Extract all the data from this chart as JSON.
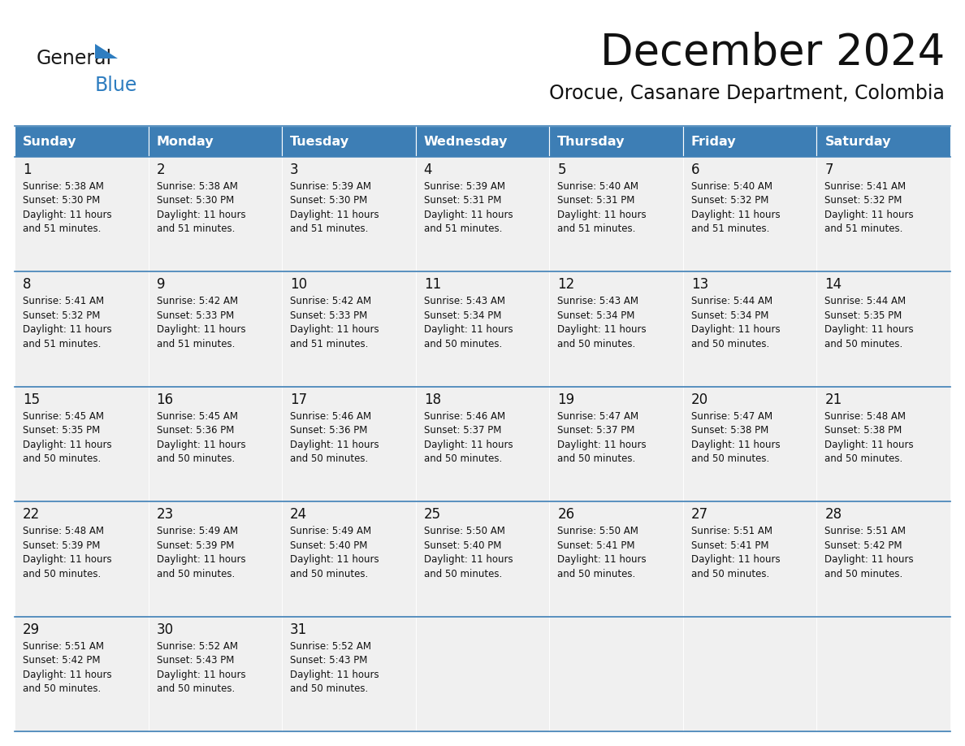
{
  "title": "December 2024",
  "subtitle": "Orocue, Casanare Department, Colombia",
  "header_color": "#3d7eb5",
  "header_text_color": "#ffffff",
  "cell_bg_color": "#f0f0f0",
  "day_headers": [
    "Sunday",
    "Monday",
    "Tuesday",
    "Wednesday",
    "Thursday",
    "Friday",
    "Saturday"
  ],
  "calendar_data": [
    [
      {
        "day": "1",
        "sunrise": "5:38 AM",
        "sunset": "5:30 PM",
        "daylight_hours": "11 hours",
        "daylight_mins": "and 51 minutes."
      },
      {
        "day": "2",
        "sunrise": "5:38 AM",
        "sunset": "5:30 PM",
        "daylight_hours": "11 hours",
        "daylight_mins": "and 51 minutes."
      },
      {
        "day": "3",
        "sunrise": "5:39 AM",
        "sunset": "5:30 PM",
        "daylight_hours": "11 hours",
        "daylight_mins": "and 51 minutes."
      },
      {
        "day": "4",
        "sunrise": "5:39 AM",
        "sunset": "5:31 PM",
        "daylight_hours": "11 hours",
        "daylight_mins": "and 51 minutes."
      },
      {
        "day": "5",
        "sunrise": "5:40 AM",
        "sunset": "5:31 PM",
        "daylight_hours": "11 hours",
        "daylight_mins": "and 51 minutes."
      },
      {
        "day": "6",
        "sunrise": "5:40 AM",
        "sunset": "5:32 PM",
        "daylight_hours": "11 hours",
        "daylight_mins": "and 51 minutes."
      },
      {
        "day": "7",
        "sunrise": "5:41 AM",
        "sunset": "5:32 PM",
        "daylight_hours": "11 hours",
        "daylight_mins": "and 51 minutes."
      }
    ],
    [
      {
        "day": "8",
        "sunrise": "5:41 AM",
        "sunset": "5:32 PM",
        "daylight_hours": "11 hours",
        "daylight_mins": "and 51 minutes."
      },
      {
        "day": "9",
        "sunrise": "5:42 AM",
        "sunset": "5:33 PM",
        "daylight_hours": "11 hours",
        "daylight_mins": "and 51 minutes."
      },
      {
        "day": "10",
        "sunrise": "5:42 AM",
        "sunset": "5:33 PM",
        "daylight_hours": "11 hours",
        "daylight_mins": "and 51 minutes."
      },
      {
        "day": "11",
        "sunrise": "5:43 AM",
        "sunset": "5:34 PM",
        "daylight_hours": "11 hours",
        "daylight_mins": "and 50 minutes."
      },
      {
        "day": "12",
        "sunrise": "5:43 AM",
        "sunset": "5:34 PM",
        "daylight_hours": "11 hours",
        "daylight_mins": "and 50 minutes."
      },
      {
        "day": "13",
        "sunrise": "5:44 AM",
        "sunset": "5:34 PM",
        "daylight_hours": "11 hours",
        "daylight_mins": "and 50 minutes."
      },
      {
        "day": "14",
        "sunrise": "5:44 AM",
        "sunset": "5:35 PM",
        "daylight_hours": "11 hours",
        "daylight_mins": "and 50 minutes."
      }
    ],
    [
      {
        "day": "15",
        "sunrise": "5:45 AM",
        "sunset": "5:35 PM",
        "daylight_hours": "11 hours",
        "daylight_mins": "and 50 minutes."
      },
      {
        "day": "16",
        "sunrise": "5:45 AM",
        "sunset": "5:36 PM",
        "daylight_hours": "11 hours",
        "daylight_mins": "and 50 minutes."
      },
      {
        "day": "17",
        "sunrise": "5:46 AM",
        "sunset": "5:36 PM",
        "daylight_hours": "11 hours",
        "daylight_mins": "and 50 minutes."
      },
      {
        "day": "18",
        "sunrise": "5:46 AM",
        "sunset": "5:37 PM",
        "daylight_hours": "11 hours",
        "daylight_mins": "and 50 minutes."
      },
      {
        "day": "19",
        "sunrise": "5:47 AM",
        "sunset": "5:37 PM",
        "daylight_hours": "11 hours",
        "daylight_mins": "and 50 minutes."
      },
      {
        "day": "20",
        "sunrise": "5:47 AM",
        "sunset": "5:38 PM",
        "daylight_hours": "11 hours",
        "daylight_mins": "and 50 minutes."
      },
      {
        "day": "21",
        "sunrise": "5:48 AM",
        "sunset": "5:38 PM",
        "daylight_hours": "11 hours",
        "daylight_mins": "and 50 minutes."
      }
    ],
    [
      {
        "day": "22",
        "sunrise": "5:48 AM",
        "sunset": "5:39 PM",
        "daylight_hours": "11 hours",
        "daylight_mins": "and 50 minutes."
      },
      {
        "day": "23",
        "sunrise": "5:49 AM",
        "sunset": "5:39 PM",
        "daylight_hours": "11 hours",
        "daylight_mins": "and 50 minutes."
      },
      {
        "day": "24",
        "sunrise": "5:49 AM",
        "sunset": "5:40 PM",
        "daylight_hours": "11 hours",
        "daylight_mins": "and 50 minutes."
      },
      {
        "day": "25",
        "sunrise": "5:50 AM",
        "sunset": "5:40 PM",
        "daylight_hours": "11 hours",
        "daylight_mins": "and 50 minutes."
      },
      {
        "day": "26",
        "sunrise": "5:50 AM",
        "sunset": "5:41 PM",
        "daylight_hours": "11 hours",
        "daylight_mins": "and 50 minutes."
      },
      {
        "day": "27",
        "sunrise": "5:51 AM",
        "sunset": "5:41 PM",
        "daylight_hours": "11 hours",
        "daylight_mins": "and 50 minutes."
      },
      {
        "day": "28",
        "sunrise": "5:51 AM",
        "sunset": "5:42 PM",
        "daylight_hours": "11 hours",
        "daylight_mins": "and 50 minutes."
      }
    ],
    [
      {
        "day": "29",
        "sunrise": "5:51 AM",
        "sunset": "5:42 PM",
        "daylight_hours": "11 hours",
        "daylight_mins": "and 50 minutes."
      },
      {
        "day": "30",
        "sunrise": "5:52 AM",
        "sunset": "5:43 PM",
        "daylight_hours": "11 hours",
        "daylight_mins": "and 50 minutes."
      },
      {
        "day": "31",
        "sunrise": "5:52 AM",
        "sunset": "5:43 PM",
        "daylight_hours": "11 hours",
        "daylight_mins": "and 50 minutes."
      },
      null,
      null,
      null,
      null
    ]
  ],
  "logo_general_color": "#1a1a1a",
  "logo_blue_color": "#2e7dc0",
  "line_color": "#3d7eb5",
  "title_fontsize": 38,
  "subtitle_fontsize": 17,
  "header_fontsize": 11.5,
  "day_num_fontsize": 12,
  "cell_text_fontsize": 8.5
}
